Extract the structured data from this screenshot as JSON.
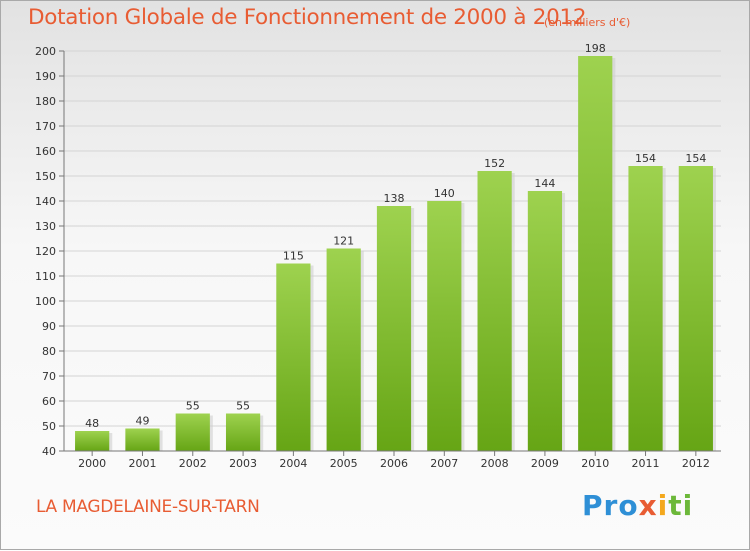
{
  "header": {
    "title": "Dotation Globale de Fonctionnement de 2000 à 2012",
    "unit_note": "(en milliers d'€)"
  },
  "footer": {
    "town": "LA MAGDELAINE-SUR-TARN",
    "logo": {
      "p1": "Pro",
      "p2": "x",
      "p3": "i",
      "p4": "ti"
    }
  },
  "colors": {
    "bar_light": "#9ed24f",
    "bar_dark": "#66a515",
    "title": "#e85c33"
  },
  "chart_data": {
    "type": "bar",
    "title": "Dotation Globale de Fonctionnement de 2000 à 2012",
    "subtitle": "(en milliers d'€)",
    "xlabel": "",
    "ylabel": "",
    "categories": [
      "2000",
      "2001",
      "2002",
      "2003",
      "2004",
      "2005",
      "2006",
      "2007",
      "2008",
      "2009",
      "2010",
      "2011",
      "2012"
    ],
    "values": [
      48,
      49,
      55,
      55,
      115,
      121,
      138,
      140,
      152,
      144,
      198,
      154,
      154
    ],
    "ylim": [
      40,
      200
    ],
    "yticks": [
      40,
      50,
      60,
      70,
      80,
      90,
      100,
      110,
      120,
      130,
      140,
      150,
      160,
      170,
      180,
      190,
      200
    ],
    "grid": true
  }
}
